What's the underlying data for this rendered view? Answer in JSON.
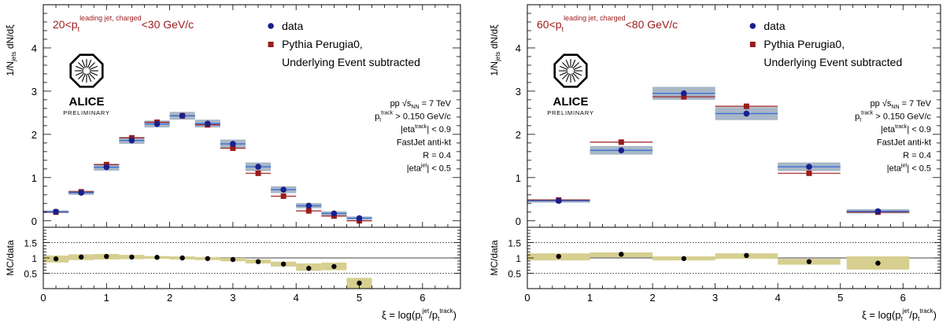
{
  "colors": {
    "data": "#1a1f8c",
    "mc": "#9b1b1b",
    "sys_band": "#a9b7c6",
    "ratio_band": "#d6cf90",
    "data_line": "#3a6fd8",
    "title_text": "#9b1b1b"
  },
  "chart_data": [
    {
      "type": "scatter",
      "panel": "left",
      "title": "20<p_t^{leading jet, charged}<30 GeV/c",
      "title_parts": {
        "pre": "20<p",
        "sub": "t",
        "sup": "leading jet, charged",
        "post": "<30 GeV/c"
      },
      "ylabel_main": "1/N_jets dN/dξ",
      "ylabel_ratio": "MC/data",
      "xlabel": "ξ = log(p_t^jet/p_t^track)",
      "xlim": [
        0,
        6.6
      ],
      "ylim_main": [
        -0.15,
        5.0
      ],
      "ylim_ratio": [
        0,
        2.0
      ],
      "x_ticks": [
        "0",
        "1",
        "2",
        "3",
        "4",
        "5",
        "6"
      ],
      "y_ticks_main": [
        "0",
        "1",
        "2",
        "3",
        "4"
      ],
      "y_ticks_ratio": [
        "0.5",
        "1",
        "1.5"
      ],
      "legend": [
        {
          "label": "data",
          "marker": "circle"
        },
        {
          "label": "Pythia Perugia0,",
          "marker": "square"
        },
        {
          "label": "Underlying Event subtracted",
          "marker": "none"
        }
      ],
      "legend_position": "top-right",
      "logo": {
        "name": "ALICE",
        "sub": "PRELIMINARY"
      },
      "info_lines": [
        "pp √s_NN = 7 TeV",
        "p_t^track > 0.150 GeV/c",
        "|eta^track| < 0.9",
        "FastJet anti-kt",
        "R = 0.4",
        "|eta^jet| < 0.5"
      ],
      "bin_width": 0.4,
      "series": [
        {
          "name": "data",
          "x": [
            0.2,
            0.6,
            1.0,
            1.4,
            1.8,
            2.2,
            2.6,
            3.0,
            3.4,
            3.8,
            4.2,
            4.6,
            5.0
          ],
          "values": [
            0.21,
            0.65,
            1.24,
            1.86,
            2.24,
            2.43,
            2.25,
            1.78,
            1.25,
            0.72,
            0.35,
            0.17,
            0.06
          ],
          "sys": [
            0.03,
            0.05,
            0.08,
            0.08,
            0.08,
            0.09,
            0.09,
            0.1,
            0.1,
            0.08,
            0.06,
            0.05,
            0.04
          ]
        },
        {
          "name": "Pythia Perugia0,",
          "x": [
            0.2,
            0.6,
            1.0,
            1.4,
            1.8,
            2.2,
            2.6,
            3.0,
            3.4,
            3.8,
            4.2,
            4.6,
            5.0
          ],
          "values": [
            0.2,
            0.67,
            1.3,
            1.92,
            2.28,
            2.43,
            2.22,
            1.68,
            1.1,
            0.57,
            0.23,
            0.11,
            0.0
          ]
        }
      ],
      "ratio": {
        "x": [
          0.2,
          0.6,
          1.0,
          1.4,
          1.8,
          2.2,
          2.6,
          3.0,
          3.4,
          3.8,
          4.2,
          4.6,
          5.0
        ],
        "values": [
          0.97,
          1.03,
          1.05,
          1.03,
          1.02,
          1.0,
          0.98,
          0.95,
          0.88,
          0.8,
          0.66,
          0.72,
          0.18
        ],
        "band_lo": [
          0.85,
          0.93,
          0.95,
          0.96,
          0.97,
          0.95,
          0.93,
          0.89,
          0.82,
          0.72,
          0.58,
          0.6,
          0.0
        ],
        "band_hi": [
          1.08,
          1.12,
          1.13,
          1.1,
          1.06,
          1.05,
          1.03,
          1.0,
          0.95,
          0.88,
          0.82,
          0.85,
          0.35
        ]
      }
    },
    {
      "type": "scatter",
      "panel": "right",
      "title": "60<p_t^{leading jet, charged}<80 GeV/c",
      "title_parts": {
        "pre": "60<p",
        "sub": "t",
        "sup": "leading jet, charged",
        "post": "<80 GeV/c"
      },
      "ylabel_main": "1/N_jets dN/dξ",
      "ylabel_ratio": "MC/data",
      "xlabel": "ξ = log(p_t^jet/p_t^track)",
      "xlim": [
        0,
        6.6
      ],
      "ylim_main": [
        -0.15,
        5.0
      ],
      "ylim_ratio": [
        0,
        2.0
      ],
      "x_ticks": [
        "0",
        "1",
        "2",
        "3",
        "4",
        "5",
        "6"
      ],
      "y_ticks_main": [
        "0",
        "1",
        "2",
        "3",
        "4"
      ],
      "y_ticks_ratio": [
        "0.5",
        "1",
        "1.5"
      ],
      "legend": [
        {
          "label": "data",
          "marker": "circle"
        },
        {
          "label": "Pythia Perugia0,",
          "marker": "square"
        },
        {
          "label": "Underlying Event subtracted",
          "marker": "none"
        }
      ],
      "legend_position": "top-right",
      "logo": {
        "name": "ALICE",
        "sub": "PRELIMINARY"
      },
      "info_lines": [
        "pp √s_NN = 7 TeV",
        "p_t^track > 0.150 GeV/c",
        "|eta^track| < 0.9",
        "FastJet anti-kt",
        "R = 0.4",
        "|eta^jet| < 0.5"
      ],
      "bin_width": 1.0,
      "series": [
        {
          "name": "data",
          "x": [
            0.5,
            1.5,
            2.5,
            3.5,
            4.5,
            5.6
          ],
          "values": [
            0.46,
            1.63,
            2.95,
            2.48,
            1.25,
            0.22
          ],
          "sys": [
            0.04,
            0.1,
            0.15,
            0.15,
            0.1,
            0.05
          ]
        },
        {
          "name": "Pythia Perugia0,",
          "x": [
            0.5,
            1.5,
            2.5,
            3.5,
            4.5,
            5.6
          ],
          "values": [
            0.48,
            1.82,
            2.87,
            2.65,
            1.1,
            0.2
          ]
        }
      ],
      "ratio": {
        "x": [
          0.5,
          1.5,
          2.5,
          3.5,
          4.5,
          5.6
        ],
        "values": [
          1.05,
          1.12,
          0.98,
          1.08,
          0.88,
          0.83
        ],
        "band_lo": [
          0.92,
          1.02,
          0.92,
          0.97,
          0.78,
          0.62
        ],
        "band_hi": [
          1.15,
          1.18,
          1.05,
          1.15,
          0.97,
          1.05
        ]
      }
    }
  ]
}
